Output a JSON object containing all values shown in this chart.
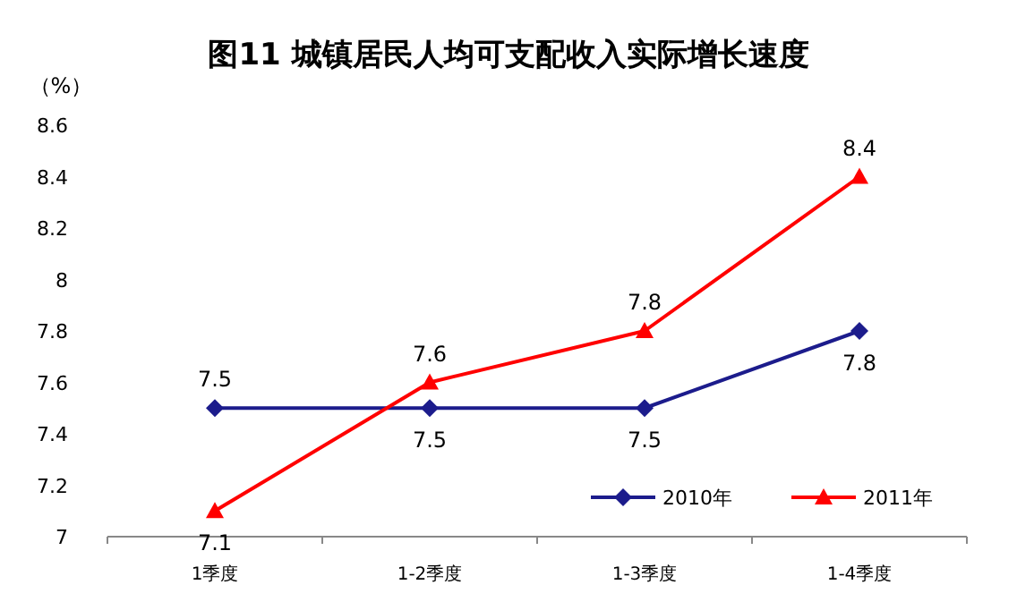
{
  "chart_data": {
    "type": "line",
    "title": "图11  城镇居民人均可支配收入实际增长速度",
    "ylabel": "（%）",
    "categories": [
      "1季度",
      "1-2季度",
      "1-3季度",
      "1-4季度"
    ],
    "series": [
      {
        "name": "2010年",
        "color": "#1c1c8c",
        "marker": "diamond",
        "values": [
          7.5,
          7.5,
          7.5,
          7.8
        ]
      },
      {
        "name": "2011年",
        "color": "#ff0000",
        "marker": "triangle",
        "values": [
          7.1,
          7.6,
          7.8,
          8.4
        ]
      }
    ],
    "ylim": [
      7,
      8.6
    ],
    "yticks": [
      7,
      7.2,
      7.4,
      7.6,
      7.8,
      8,
      8.2,
      8.4,
      8.6
    ],
    "data_labels": true,
    "legend": "bottom right",
    "grid": false
  }
}
